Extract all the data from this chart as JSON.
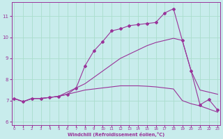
{
  "xlabel": "Windchill (Refroidissement éolien,°C)",
  "background_color": "#c8ecec",
  "grid_color": "#aaddcc",
  "line_color": "#993399",
  "x_ticks": [
    0,
    1,
    2,
    3,
    4,
    5,
    6,
    7,
    8,
    9,
    10,
    11,
    12,
    13,
    14,
    15,
    16,
    17,
    18,
    19,
    20,
    21,
    22,
    23
  ],
  "y_ticks": [
    6,
    7,
    8,
    9,
    10,
    11
  ],
  "xlim": [
    -0.3,
    23.3
  ],
  "ylim": [
    5.85,
    11.65
  ],
  "line1_x": [
    0,
    1,
    2,
    3,
    4,
    5,
    6,
    7,
    8,
    9,
    10,
    11,
    12,
    13,
    14,
    15,
    16,
    17,
    18,
    19,
    20,
    21,
    22,
    23
  ],
  "line1_y": [
    7.1,
    6.95,
    7.1,
    7.1,
    7.15,
    7.2,
    7.3,
    7.6,
    8.65,
    9.35,
    9.8,
    10.3,
    10.4,
    10.55,
    10.6,
    10.65,
    10.7,
    11.15,
    11.35,
    9.85,
    8.4,
    6.8,
    7.05,
    6.55
  ],
  "line2_x": [
    0,
    1,
    2,
    3,
    4,
    5,
    6,
    7,
    8,
    9,
    10,
    11,
    12,
    13,
    14,
    15,
    16,
    17,
    18,
    19,
    20,
    21,
    22,
    23
  ],
  "line2_y": [
    7.1,
    6.95,
    7.1,
    7.1,
    7.15,
    7.2,
    7.4,
    7.6,
    7.8,
    8.1,
    8.4,
    8.7,
    9.0,
    9.2,
    9.4,
    9.6,
    9.75,
    9.85,
    9.95,
    9.85,
    8.4,
    7.5,
    7.4,
    7.3
  ],
  "line3_x": [
    0,
    1,
    2,
    3,
    4,
    5,
    6,
    7,
    8,
    9,
    10,
    11,
    12,
    13,
    14,
    15,
    16,
    17,
    18,
    19,
    20,
    21,
    22,
    23
  ],
  "line3_y": [
    7.1,
    6.95,
    7.1,
    7.1,
    7.15,
    7.2,
    7.3,
    7.4,
    7.5,
    7.55,
    7.6,
    7.65,
    7.7,
    7.7,
    7.7,
    7.68,
    7.65,
    7.6,
    7.55,
    7.0,
    6.85,
    6.75,
    6.6,
    6.45
  ]
}
